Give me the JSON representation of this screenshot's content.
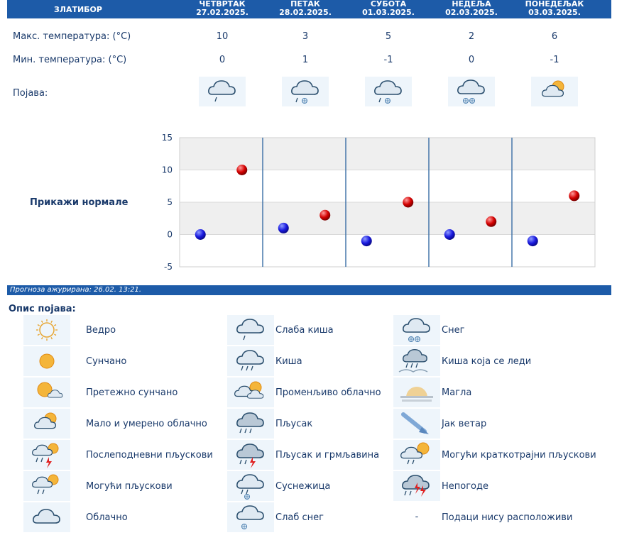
{
  "header": {
    "location": "ЗЛАТИБОР",
    "days": [
      {
        "day": "ЧЕТВРТАК",
        "date": "27.02.2025."
      },
      {
        "day": "ПЕТАК",
        "date": "28.02.2025."
      },
      {
        "day": "СУБОТА",
        "date": "01.03.2025."
      },
      {
        "day": "НЕДЕЉА",
        "date": "02.03.2025."
      },
      {
        "day": "ПОНЕДЕЉАК",
        "date": "03.03.2025."
      }
    ]
  },
  "rows": {
    "max_label": "Макс. температура: (°C)",
    "min_label": "Мин. температура: (°C)",
    "phen_label": "Појава:",
    "max_values": [
      "10",
      "3",
      "5",
      "2",
      "6"
    ],
    "min_values": [
      "0",
      "1",
      "-1",
      "0",
      "-1"
    ],
    "phenomena_icons": [
      "light-rain-icon",
      "rain-snow-icon",
      "rain-snow-icon",
      "snow-icon",
      "partly-cloudy-icon"
    ]
  },
  "normals_label": "Прикажи нормале",
  "chart_data": {
    "type": "scatter",
    "categories": [
      "27.02.2025.",
      "28.02.2025.",
      "01.03.2025.",
      "02.03.2025.",
      "03.03.2025."
    ],
    "series": [
      {
        "values": [
          0,
          1,
          -1,
          0,
          -1
        ],
        "color": "#1a1adf"
      },
      {
        "values": [
          10,
          3,
          5,
          2,
          6
        ],
        "color": "#d40000"
      }
    ],
    "ylim": [
      -5,
      15
    ],
    "yticks": [
      "15",
      "10",
      "5",
      "0",
      "-5"
    ],
    "grid": true
  },
  "updated": "Прогноза ажурирана:  26.02. 13:21.",
  "legend": {
    "title": "Опис појава:",
    "columns": [
      [
        {
          "icon": "clear-icon",
          "label": "Ведро"
        },
        {
          "icon": "sunny-icon",
          "label": "Сунчано"
        },
        {
          "icon": "mostly-sunny-icon",
          "label": "Претежно сунчано"
        },
        {
          "icon": "partly-cloudy-icon",
          "label": "Мало и умерено облачно"
        },
        {
          "icon": "afternoon-showers-icon",
          "label": "Послеподневни пљускови"
        },
        {
          "icon": "possible-showers-icon",
          "label": "Могући пљускови"
        },
        {
          "icon": "cloudy-icon",
          "label": "Облачно"
        }
      ],
      [
        {
          "icon": "light-rain-icon",
          "label": "Слаба киша"
        },
        {
          "icon": "rain-icon",
          "label": "Киша"
        },
        {
          "icon": "variable-cloudy-icon",
          "label": "Променљиво облачно"
        },
        {
          "icon": "shower-icon",
          "label": "Пљусак"
        },
        {
          "icon": "thunder-shower-icon",
          "label": "Пљусак и грмљавина"
        },
        {
          "icon": "sleet-icon",
          "label": "Суснежица"
        },
        {
          "icon": "light-snow-icon",
          "label": "Слаб снег"
        }
      ],
      [
        {
          "icon": "snow-icon",
          "label": "Снег"
        },
        {
          "icon": "freezing-rain-icon",
          "label": "Киша која се леди"
        },
        {
          "icon": "fog-icon",
          "label": "Магла"
        },
        {
          "icon": "strong-wind-icon",
          "label": "Јак ветар"
        },
        {
          "icon": "brief-showers-icon",
          "label": "Могући краткотрајни пљускови"
        },
        {
          "icon": "storm-icon",
          "label": "Непогоде"
        },
        {
          "icon": "",
          "dash": "-",
          "label": "Подаци нису расположиви"
        }
      ]
    ]
  }
}
